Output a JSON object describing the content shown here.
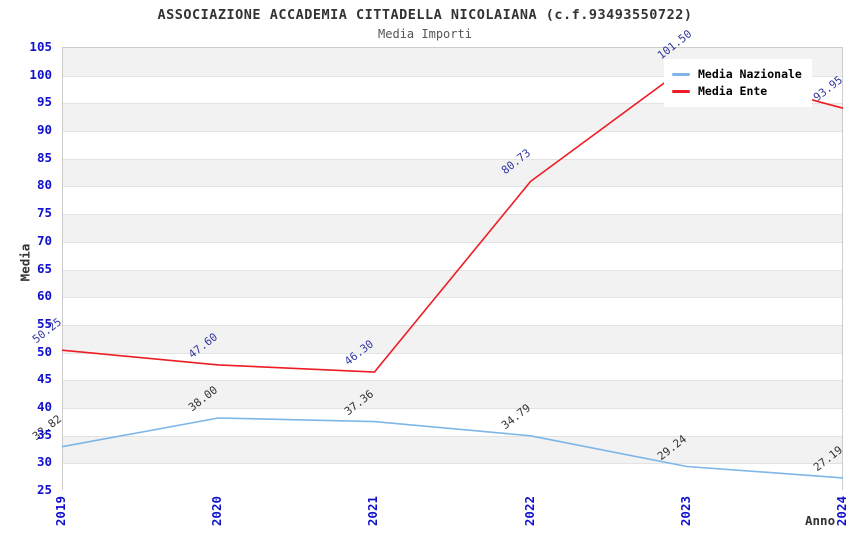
{
  "header": {
    "title": "ASSOCIAZIONE ACCADEMIA CITTADELLA NICOLAIANA (c.f.93493550722)",
    "subtitle": "Media Importi"
  },
  "chart_data": {
    "type": "line",
    "title": "ASSOCIAZIONE ACCADEMIA CITTADELLA NICOLAIANA (c.f.93493550722)",
    "subtitle": "Media Importi",
    "xlabel": "Anno",
    "ylabel": "Media",
    "categories": [
      "2019",
      "2020",
      "2021",
      "2022",
      "2023",
      "2024"
    ],
    "series": [
      {
        "name": "Media Nazionale",
        "color": "#7eb6e8",
        "label_color": "#333333",
        "values": [
          32.82,
          38.0,
          37.36,
          34.79,
          29.24,
          27.19
        ],
        "labels": [
          "32.82",
          "38.00",
          "37.36",
          "34.79",
          "29.24",
          "27.19"
        ]
      },
      {
        "name": "Media Ente",
        "color": "#ee1c25",
        "label_color": "#333a9e",
        "values": [
          50.25,
          47.6,
          46.3,
          80.73,
          101.5,
          93.95
        ],
        "labels": [
          "50.25",
          "47.60",
          "46.30",
          "80.73",
          "101.50",
          "93.95"
        ]
      }
    ],
    "ylim": [
      25,
      105
    ],
    "ytick_step": 5,
    "yticks": [
      25,
      30,
      35,
      40,
      45,
      50,
      55,
      60,
      65,
      70,
      75,
      80,
      85,
      90,
      95,
      100,
      105
    ],
    "grid": "horizontal-bands-alternating",
    "legend_position": "top-right",
    "tick_label_color": "#1111cc",
    "band_color": "#f2f2f2",
    "gridline_color": "#e3e3e3",
    "plot_border_color": "#cccccc"
  }
}
